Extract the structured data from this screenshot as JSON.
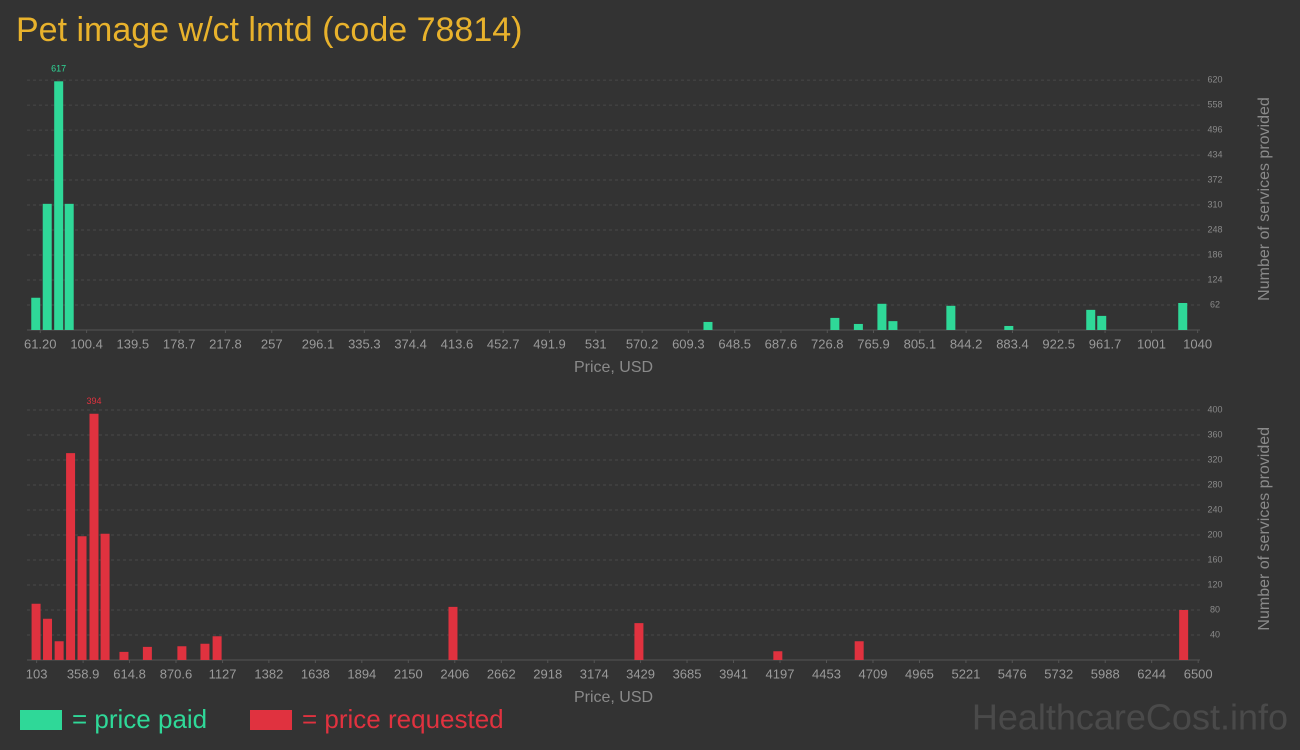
{
  "chart_data": [
    {
      "type": "bar",
      "title": "Pet image w/ct lmtd (code 78814)",
      "x": [
        57.4,
        67.1,
        76.8,
        85.7,
        625.9,
        733.2,
        753.1,
        773.0,
        782.3,
        831.3,
        880.3,
        949.6,
        958.9,
        1027.4
      ],
      "series": [
        {
          "name": "= price paid",
          "color": "#2fd898",
          "values": [
            80,
            313,
            617,
            313,
            20,
            30,
            15,
            65,
            22,
            60,
            10,
            50,
            35,
            67
          ]
        }
      ],
      "xlim": [
        50,
        1042
      ],
      "xticks": [
        {
          "value": 61.2,
          "label": "61.20"
        },
        100.4,
        139.5,
        178.7,
        217.8,
        257,
        296.1,
        335.3,
        374.4,
        413.6,
        452.7,
        491.9,
        531,
        570.2,
        609.3,
        648.5,
        687.6,
        726.8,
        765.9,
        805.1,
        844.2,
        883.4,
        922.5,
        961.7,
        1001,
        1040
      ],
      "ylim": [
        0,
        650
      ],
      "yticks": [
        62,
        124,
        186,
        248,
        310,
        372,
        434,
        496,
        558,
        620
      ],
      "xlabel": "Price, USD",
      "ylabel": "Number of services provided",
      "grid": true
    },
    {
      "type": "bar",
      "x": [
        100,
        163,
        227,
        290,
        353,
        419,
        480,
        584,
        713,
        903,
        1030,
        1097,
        2396,
        3420,
        4185,
        4633,
        6420
      ],
      "series": [
        {
          "name": "= price requested",
          "color": "#e0323f",
          "values": [
            90,
            66,
            30,
            331,
            198,
            394,
            202,
            13,
            21,
            22,
            26,
            38,
            85,
            59,
            14,
            30,
            80
          ]
        }
      ],
      "xlim": [
        50,
        6510
      ],
      "xticks": [
        103,
        358.9,
        614.8,
        870.6,
        1127,
        1382,
        1638,
        1894,
        2150,
        2406,
        2662,
        2918,
        3174,
        3429,
        3685,
        3941,
        4197,
        4453,
        4709,
        4965,
        5221,
        5476,
        5732,
        5988,
        6244,
        6500
      ],
      "ylim": [
        0,
        420
      ],
      "yticks": [
        40,
        80,
        120,
        160,
        200,
        240,
        280,
        320,
        360,
        400
      ],
      "xlabel": "Price, USD",
      "ylabel": "Number of services provided",
      "grid": true
    }
  ],
  "watermark": "HealthcareCost.info"
}
